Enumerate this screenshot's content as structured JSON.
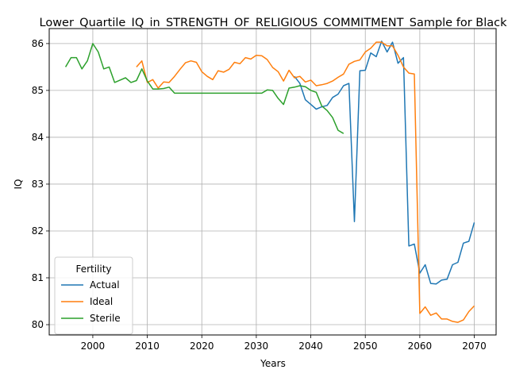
{
  "chart_data": {
    "type": "line",
    "title": "Lower_Quartile_IQ_in_STRENGTH_OF_RELIGIOUS_COMMITMENT_Sample for Black",
    "xlabel": "Years",
    "ylabel": "IQ",
    "xlim": [
      1992,
      2074
    ],
    "ylim": [
      79.78,
      86.32
    ],
    "xticks": [
      2000,
      2010,
      2020,
      2030,
      2040,
      2050,
      2060,
      2070
    ],
    "yticks": [
      80,
      81,
      82,
      83,
      84,
      85,
      86
    ],
    "grid": true,
    "legend": {
      "title": "Fertility",
      "placement": "lower-left"
    },
    "series": [
      {
        "name": "Actual",
        "color": "#1f77b4",
        "x": [
          2037,
          2038,
          2039,
          2040,
          2041,
          2042,
          2043,
          2044,
          2045,
          2046,
          2047,
          2048,
          2049,
          2050,
          2051,
          2052,
          2053,
          2054,
          2055,
          2056,
          2057,
          2058,
          2059,
          2060,
          2061,
          2062,
          2063,
          2064,
          2065,
          2066,
          2067,
          2068,
          2069,
          2070
        ],
        "y": [
          85.3,
          85.15,
          84.8,
          84.7,
          84.6,
          84.65,
          84.68,
          84.85,
          84.92,
          85.1,
          85.15,
          82.2,
          85.42,
          85.43,
          85.8,
          85.72,
          86.05,
          85.82,
          86.03,
          85.58,
          85.7,
          81.68,
          81.72,
          81.1,
          81.28,
          80.88,
          80.87,
          80.95,
          80.97,
          81.28,
          81.33,
          81.74,
          81.78,
          82.18
        ]
      },
      {
        "name": "Ideal",
        "color": "#ff7f0e",
        "x": [
          2008,
          2009,
          2010,
          2011,
          2012,
          2013,
          2014,
          2015,
          2016,
          2017,
          2018,
          2019,
          2020,
          2021,
          2022,
          2023,
          2024,
          2025,
          2026,
          2027,
          2028,
          2029,
          2030,
          2031,
          2032,
          2033,
          2034,
          2035,
          2036,
          2037,
          2038,
          2039,
          2040,
          2041,
          2042,
          2043,
          2044,
          2045,
          2046,
          2047,
          2048,
          2049,
          2050,
          2051,
          2052,
          2053,
          2054,
          2055,
          2056,
          2057,
          2058,
          2059,
          2060,
          2061,
          2062,
          2063,
          2064,
          2065,
          2066,
          2067,
          2068,
          2069,
          2070
        ],
        "y": [
          85.5,
          85.63,
          85.17,
          85.23,
          85.05,
          85.18,
          85.17,
          85.3,
          85.45,
          85.59,
          85.63,
          85.6,
          85.4,
          85.3,
          85.23,
          85.42,
          85.39,
          85.45,
          85.6,
          85.57,
          85.7,
          85.67,
          85.75,
          85.74,
          85.66,
          85.49,
          85.4,
          85.2,
          85.43,
          85.27,
          85.3,
          85.18,
          85.22,
          85.1,
          85.12,
          85.15,
          85.2,
          85.28,
          85.35,
          85.56,
          85.62,
          85.65,
          85.82,
          85.9,
          86.03,
          86.03,
          85.95,
          85.95,
          85.75,
          85.5,
          85.37,
          85.35,
          80.24,
          80.38,
          80.2,
          80.25,
          80.12,
          80.12,
          80.07,
          80.05,
          80.1,
          80.28,
          80.4
        ]
      },
      {
        "name": "Sterile",
        "color": "#2ca02c",
        "x": [
          1995,
          1996,
          1997,
          1998,
          1999,
          2000,
          2001,
          2002,
          2003,
          2004,
          2005,
          2006,
          2007,
          2008,
          2009,
          2010,
          2011,
          2012,
          2013,
          2014,
          2015,
          2016,
          2017,
          2018,
          2019,
          2020,
          2021,
          2022,
          2023,
          2024,
          2025,
          2026,
          2027,
          2028,
          2029,
          2030,
          2031,
          2032,
          2033,
          2034,
          2035,
          2036,
          2037,
          2038,
          2039,
          2040,
          2041,
          2042,
          2043,
          2044,
          2045,
          2046
        ],
        "y": [
          85.5,
          85.7,
          85.7,
          85.46,
          85.63,
          86.0,
          85.82,
          85.46,
          85.5,
          85.17,
          85.22,
          85.27,
          85.17,
          85.21,
          85.46,
          85.2,
          85.03,
          85.03,
          85.04,
          85.07,
          84.94,
          84.94,
          84.94,
          84.94,
          84.94,
          84.94,
          84.94,
          84.94,
          84.94,
          84.94,
          84.94,
          84.94,
          84.94,
          84.94,
          84.94,
          84.94,
          84.94,
          85.01,
          85.0,
          84.83,
          84.7,
          85.05,
          85.07,
          85.1,
          85.08,
          85.0,
          84.96,
          84.67,
          84.57,
          84.42,
          84.15,
          84.08
        ]
      }
    ]
  }
}
